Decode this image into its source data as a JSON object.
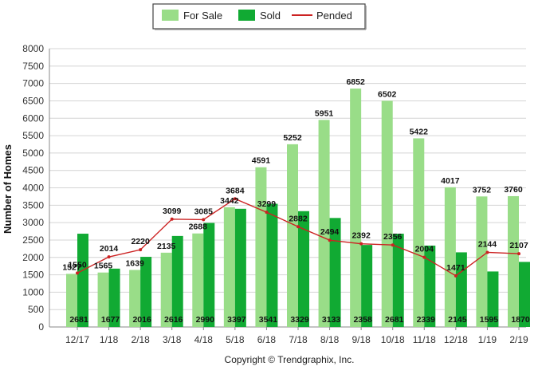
{
  "chart_data": {
    "type": "bar",
    "ylabel": "Number of Homes",
    "xlabel": "",
    "footer": "Copyright © Trendgraphix, Inc.",
    "ylim": [
      0,
      8000
    ],
    "ytick_step": 500,
    "grid": true,
    "legend_position": "top-center",
    "categories": [
      "12/17",
      "1/18",
      "2/18",
      "3/18",
      "4/18",
      "5/18",
      "6/18",
      "7/18",
      "8/18",
      "9/18",
      "10/18",
      "11/18",
      "12/18",
      "1/19",
      "2/19"
    ],
    "series": [
      {
        "name": "For Sale",
        "kind": "bar",
        "color": "#99dd88",
        "values": [
          1527,
          1565,
          1639,
          2135,
          2688,
          3442,
          4591,
          5252,
          5951,
          6852,
          6502,
          5422,
          4017,
          3752,
          3760
        ]
      },
      {
        "name": "Sold",
        "kind": "bar",
        "color": "#11aa33",
        "values": [
          2681,
          1677,
          2016,
          2616,
          2990,
          3397,
          3541,
          3329,
          3133,
          2358,
          2681,
          2339,
          2145,
          1595,
          1870
        ]
      },
      {
        "name": "Pended",
        "kind": "line",
        "color": "#cc2222",
        "values": [
          1550,
          2014,
          2220,
          3099,
          3085,
          3684,
          3299,
          2882,
          2494,
          2392,
          2356,
          2004,
          1471,
          2144,
          2107
        ]
      }
    ]
  }
}
